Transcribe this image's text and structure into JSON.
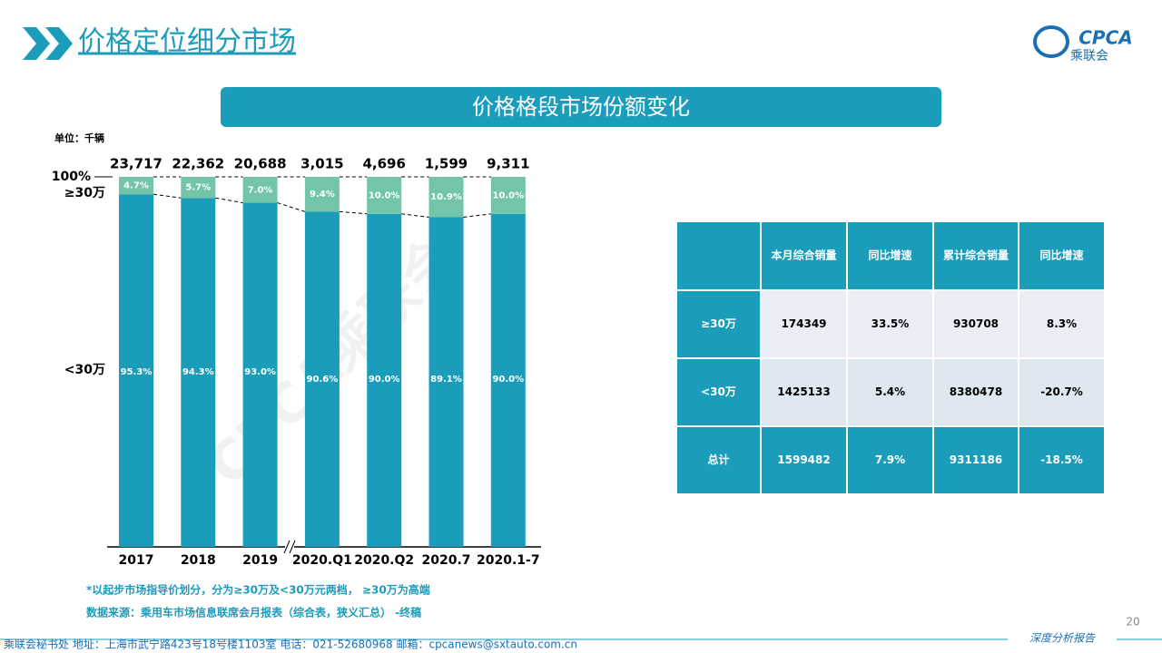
{
  "slide_title": "价格定位细分市场",
  "logo": {
    "main": "CPCA",
    "sub": "乘联会"
  },
  "banner": "价格格段市场份额变化",
  "watermark": "CPCA乘联会",
  "chart_data": {
    "type": "stacked_bar",
    "unit": "单位：千辆",
    "categories": [
      "2017",
      "2018",
      "2019",
      "2020.Q1",
      "2020.Q2",
      "2020.7",
      "2020.1-7"
    ],
    "series": [
      {
        "name": "<30万",
        "color": "#1b9cbb",
        "values": [
          95.3,
          94.3,
          93.0,
          90.6,
          90.0,
          89.1,
          90.0
        ],
        "value_labels": [
          "95.3%",
          "94.3%",
          "93.0%",
          "90.6%",
          "90.0%",
          "89.1%",
          "90.0%"
        ]
      },
      {
        "name": "≥30万",
        "color": "#72c5a8",
        "values": [
          4.7,
          5.7,
          7.0,
          9.4,
          10.0,
          10.9,
          10.0
        ],
        "value_labels": [
          "4.7%",
          "5.7%",
          "7.0%",
          "9.4%",
          "10.0%",
          "10.9%",
          "10.0%"
        ]
      }
    ],
    "totals": [
      {
        "value": 23717,
        "label": "23,717"
      },
      {
        "value": 22362,
        "label": "22,362"
      },
      {
        "value": 20688,
        "label": "20,688"
      },
      {
        "value": 3015,
        "label": "3,015"
      },
      {
        "value": 4696,
        "label": "4,696"
      },
      {
        "value": 1599,
        "label": "1,599"
      },
      {
        "value": 9311,
        "label": "9,311"
      }
    ],
    "ylim": [
      0,
      100
    ],
    "yticks": [
      {
        "value": 100,
        "label": "100%"
      }
    ],
    "notes": [
      "*以起步市场指导价划分，分为≥30万及<30万元两档， ≥30万为高端",
      "数据来源：乘用车市场信息联席会月报表（综合表，狭义汇总） -终稿"
    ]
  },
  "table": {
    "header": [
      "本月综合销量",
      "同比增速",
      "累计综合销量",
      "同比增速"
    ],
    "rows": [
      {
        "label": "≥30万",
        "cells": [
          "174349",
          "33.5%",
          "930708",
          "8.3%"
        ]
      },
      {
        "label": "<30万",
        "cells": [
          "1425133",
          "5.4%",
          "8380478",
          "-20.7%"
        ]
      },
      {
        "label": "总计",
        "cells": [
          "1599482",
          "7.9%",
          "9311186",
          "-18.5%"
        ]
      }
    ]
  },
  "page_number": "20",
  "footer": "乘联会秘书处  地址：上海市武宁路423号18号楼1103室  电话：021-52680968  邮箱：cpcanews@sxtauto.com.cn",
  "footer_right": "深度分析报告"
}
